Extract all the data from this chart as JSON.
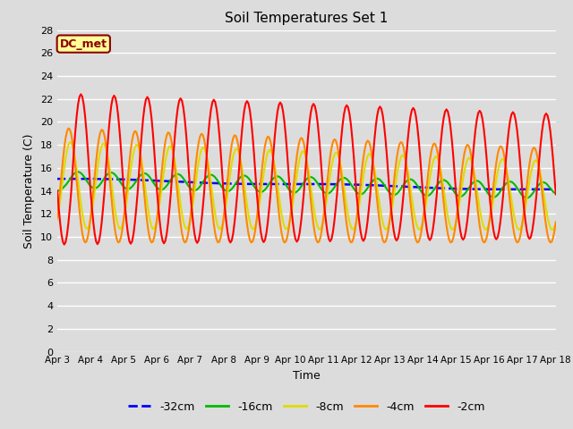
{
  "title": "Soil Temperatures Set 1",
  "xlabel": "Time",
  "ylabel": "Soil Temperature (C)",
  "ylim": [
    0,
    28
  ],
  "yticks": [
    0,
    2,
    4,
    6,
    8,
    10,
    12,
    14,
    16,
    18,
    20,
    22,
    24,
    26,
    28
  ],
  "xtick_labels": [
    "Apr 3",
    "Apr 4",
    "Apr 5",
    "Apr 6",
    "Apr 7",
    "Apr 8",
    "Apr 9",
    "Apr 10",
    "Apr 11",
    "Apr 12",
    "Apr 13",
    "Apr 14",
    "Apr 15",
    "Apr 16",
    "Apr 17",
    "Apr 18"
  ],
  "annotation_text": "DC_met",
  "annotation_box_color": "#FFFF99",
  "annotation_border_color": "#8B0000",
  "annotation_text_color": "#8B0000",
  "bg_color": "#DCDCDC",
  "series_order": [
    "-32cm",
    "-16cm",
    "-8cm",
    "-4cm",
    "-2cm"
  ],
  "series": {
    "-32cm": {
      "color": "#0000FF",
      "linestyle": "--",
      "linewidth": 1.8
    },
    "-16cm": {
      "color": "#00BB00",
      "linestyle": "-",
      "linewidth": 1.5
    },
    "-8cm": {
      "color": "#DDDD00",
      "linestyle": "-",
      "linewidth": 1.5
    },
    "-4cm": {
      "color": "#FF8800",
      "linestyle": "-",
      "linewidth": 1.5
    },
    "-2cm": {
      "color": "#FF0000",
      "linestyle": "-",
      "linewidth": 1.5
    }
  },
  "legend_entries": [
    {
      "label": "-32cm",
      "color": "#0000FF",
      "linestyle": "--"
    },
    {
      "label": "-16cm",
      "color": "#00BB00",
      "linestyle": "-"
    },
    {
      "label": "-8cm",
      "color": "#DDDD00",
      "linestyle": "-"
    },
    {
      "label": "-4cm",
      "color": "#FF8800",
      "linestyle": "-"
    },
    {
      "label": "-2cm",
      "color": "#FF0000",
      "linestyle": "-"
    }
  ]
}
